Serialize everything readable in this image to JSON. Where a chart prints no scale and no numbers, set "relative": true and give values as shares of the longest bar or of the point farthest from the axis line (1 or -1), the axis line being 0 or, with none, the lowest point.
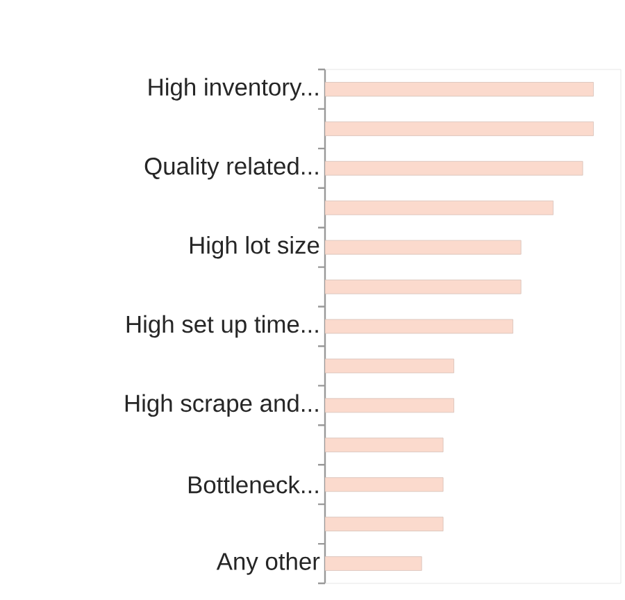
{
  "chart_data": {
    "type": "bar",
    "orientation": "horizontal",
    "relative": true,
    "categories": [
      "High inventory...",
      null,
      "Quality related...",
      null,
      "High lot size",
      null,
      "High set up time...",
      null,
      "High scrape and...",
      null,
      "Bottleneck...",
      null,
      "Any other"
    ],
    "values": [
      1,
      1,
      0.96,
      0.85,
      0.73,
      0.73,
      0.7,
      0.48,
      0.48,
      0.44,
      0.44,
      0.44,
      0.36
    ],
    "color": "#fbdacd"
  }
}
